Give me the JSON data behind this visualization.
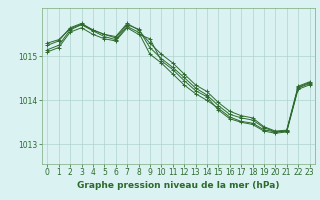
{
  "bg_color": "#daf2f2",
  "plot_bg_color": "#daf2f2",
  "line_color": "#2d6a2d",
  "grid_color": "#b0d4cc",
  "spine_color": "#7aaa7a",
  "xlabel": "Graphe pression niveau de la mer (hPa)",
  "xlabel_fontsize": 6.5,
  "tick_fontsize": 5.5,
  "ylim": [
    1012.55,
    1016.1
  ],
  "xlim": [
    -0.5,
    23.5
  ],
  "yticks": [
    1013,
    1014,
    1015
  ],
  "xticks": [
    0,
    1,
    2,
    3,
    4,
    5,
    6,
    7,
    8,
    9,
    10,
    11,
    12,
    13,
    14,
    15,
    16,
    17,
    18,
    19,
    20,
    21,
    22,
    23
  ],
  "series": [
    [
      1015.25,
      1015.35,
      1015.65,
      1015.75,
      1015.6,
      1015.5,
      1015.45,
      1015.75,
      1015.6,
      1015.3,
      1015.05,
      1014.85,
      1014.6,
      1014.35,
      1014.2,
      1013.95,
      1013.75,
      1013.65,
      1013.6,
      1013.4,
      1013.3,
      1013.32,
      1014.32,
      1014.42
    ],
    [
      1015.15,
      1015.25,
      1015.6,
      1015.72,
      1015.58,
      1015.45,
      1015.38,
      1015.68,
      1015.55,
      1015.05,
      1014.85,
      1014.6,
      1014.35,
      1014.15,
      1014.0,
      1013.82,
      1013.62,
      1013.52,
      1013.48,
      1013.33,
      1013.28,
      1013.3,
      1014.28,
      1014.38
    ],
    [
      1015.3,
      1015.38,
      1015.63,
      1015.73,
      1015.6,
      1015.5,
      1015.42,
      1015.72,
      1015.62,
      1015.2,
      1014.95,
      1014.75,
      1014.52,
      1014.28,
      1014.12,
      1013.88,
      1013.68,
      1013.6,
      1013.55,
      1013.38,
      1013.28,
      1013.3,
      1014.3,
      1014.4
    ],
    [
      1015.1,
      1015.2,
      1015.55,
      1015.65,
      1015.5,
      1015.4,
      1015.35,
      1015.65,
      1015.5,
      1015.4,
      1014.9,
      1014.7,
      1014.45,
      1014.22,
      1014.08,
      1013.78,
      1013.58,
      1013.5,
      1013.45,
      1013.3,
      1013.25,
      1013.28,
      1014.25,
      1014.35
    ]
  ]
}
